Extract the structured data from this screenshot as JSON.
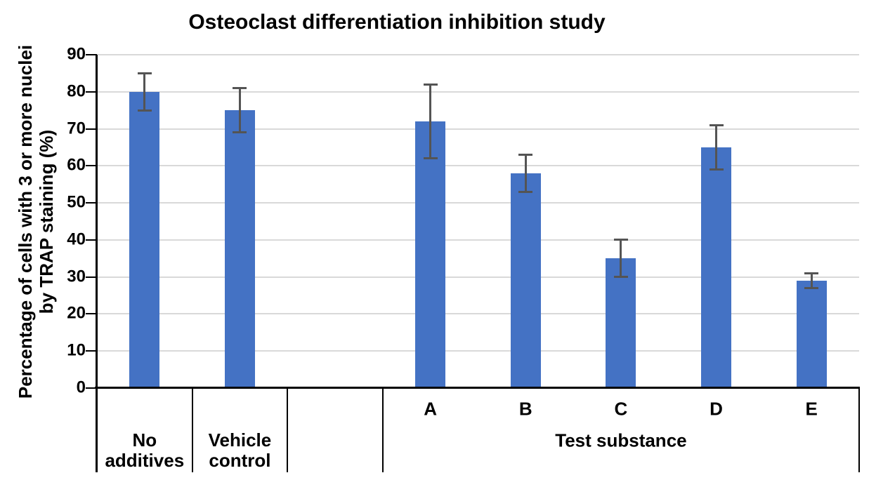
{
  "chart_data": {
    "type": "bar",
    "title": "Osteoclast differentiation inhibition study",
    "y_axis": {
      "label_line1": "Percentage of cells with 3 or more nuclei",
      "label_line2": "by TRAP staining (%)",
      "min": 0,
      "max": 90,
      "tick_step": 10,
      "ticks": [
        0,
        10,
        20,
        30,
        40,
        50,
        60,
        70,
        80,
        90
      ],
      "grid": true
    },
    "x_axis": {
      "group_label": "Test substance",
      "group_slots": [
        4,
        8
      ],
      "total_slots": 8
    },
    "bars": [
      {
        "slot": 1,
        "label": "No additives",
        "label_lines": [
          "No",
          "additives"
        ],
        "value": 80,
        "error_low": 75,
        "error_high": 85
      },
      {
        "slot": 2,
        "label": "Vehicle control",
        "label_lines": [
          "Vehicle",
          "control"
        ],
        "value": 75,
        "error_low": 69,
        "error_high": 81
      },
      {
        "slot": 4,
        "label": "A",
        "value": 72,
        "error_low": 62,
        "error_high": 82
      },
      {
        "slot": 5,
        "label": "B",
        "value": 58,
        "error_low": 53,
        "error_high": 63
      },
      {
        "slot": 6,
        "label": "C",
        "value": 35,
        "error_low": 30,
        "error_high": 40
      },
      {
        "slot": 7,
        "label": "D",
        "value": 65,
        "error_low": 59,
        "error_high": 71
      },
      {
        "slot": 8,
        "label": "E",
        "value": 29,
        "error_low": 27,
        "error_high": 31
      }
    ],
    "legend": null,
    "colors": {
      "bar": "#4472C4",
      "error": "#545454",
      "gridline": "#D9D9D9",
      "axis": "#000000",
      "text": "#000000",
      "background": "#FFFFFF"
    }
  }
}
